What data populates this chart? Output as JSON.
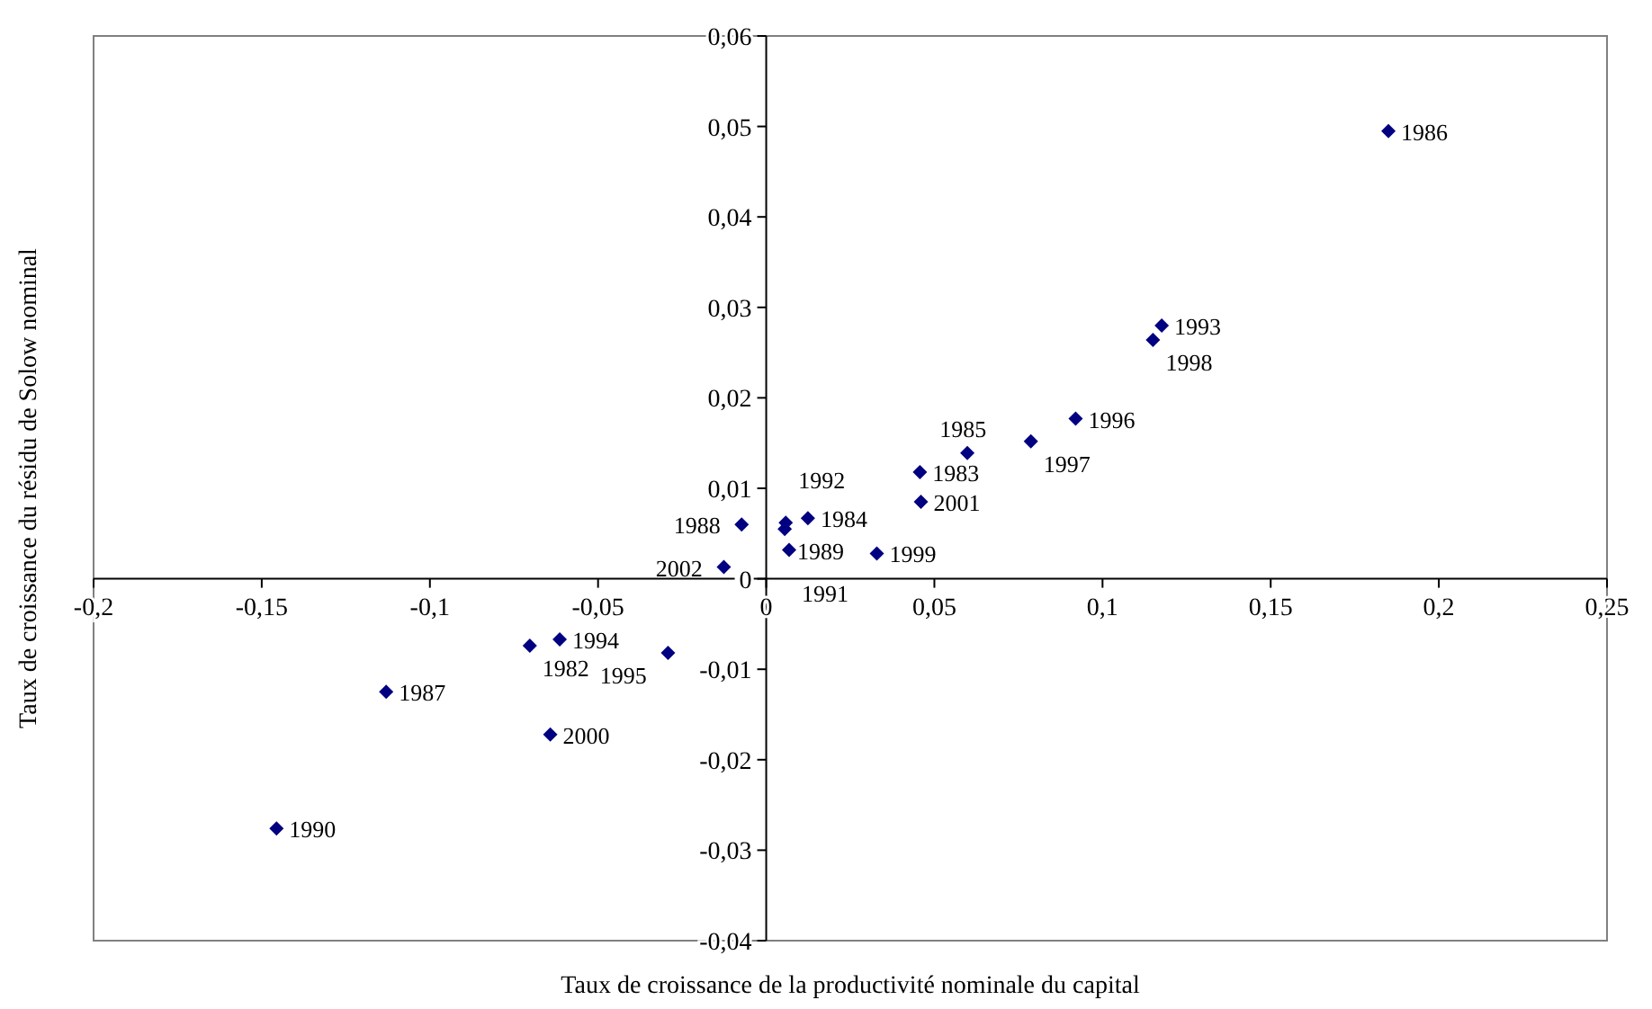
{
  "chart_data": {
    "type": "scatter",
    "xlabel": "Taux de croissance de la productivité nominale du capital",
    "ylabel": "Taux de croissance du résidu de Solow nominal",
    "x": [
      -0.0703,
      0.0457,
      0.0124,
      0.0598,
      0.185,
      -0.113,
      -0.0073,
      0.0055,
      -0.1456,
      0.0068,
      0.0058,
      0.1176,
      -0.0614,
      -0.0292,
      0.092,
      0.0787,
      0.115,
      0.0329,
      -0.0642,
      0.046,
      -0.0126
    ],
    "series": [
      {
        "color": "#000080",
        "values": [
          -0.0074,
          0.0118,
          0.0067,
          0.0139,
          0.0495,
          -0.0125,
          0.006,
          0.0055,
          -0.0276,
          0.0032,
          0.0062,
          0.028,
          -0.0067,
          -0.0082,
          0.0177,
          0.0152,
          0.0264,
          0.0028,
          -0.0172,
          0.0085,
          0.0013
        ]
      }
    ],
    "annotations": [
      {
        "text": "1982",
        "x": -0.0703,
        "y": -0.0074
      },
      {
        "text": "1983",
        "x": 0.0457,
        "y": 0.0118
      },
      {
        "text": "1984",
        "x": 0.0124,
        "y": 0.0067
      },
      {
        "text": "1985",
        "x": 0.0598,
        "y": 0.0139
      },
      {
        "text": "1986",
        "x": 0.185,
        "y": 0.0495
      },
      {
        "text": "1987",
        "x": -0.113,
        "y": -0.0125
      },
      {
        "text": "1988",
        "x": -0.0073,
        "y": 0.006
      },
      {
        "text": "1989",
        "x": 0.0055,
        "y": 0.0055
      },
      {
        "text": "1990",
        "x": -0.1456,
        "y": -0.0276
      },
      {
        "text": "1991",
        "x": 0.0068,
        "y": 0.0032
      },
      {
        "text": "1992",
        "x": 0.0058,
        "y": 0.0062
      },
      {
        "text": "1993",
        "x": 0.1176,
        "y": 0.028
      },
      {
        "text": "1994",
        "x": -0.0614,
        "y": -0.0067
      },
      {
        "text": "1995",
        "x": -0.0292,
        "y": -0.0082
      },
      {
        "text": "1996",
        "x": 0.092,
        "y": 0.0177
      },
      {
        "text": "1997",
        "x": 0.0787,
        "y": 0.0152
      },
      {
        "text": "1998",
        "x": 0.115,
        "y": 0.0264
      },
      {
        "text": "1999",
        "x": 0.0329,
        "y": 0.0028
      },
      {
        "text": "2000",
        "x": -0.0642,
        "y": -0.0172
      },
      {
        "text": "2001",
        "x": 0.046,
        "y": 0.0085
      },
      {
        "text": "2002",
        "x": -0.0126,
        "y": 0.0013
      }
    ],
    "xlim": [
      -0.2,
      0.25
    ],
    "ylim": [
      -0.04,
      0.06
    ],
    "xticks": [
      {
        "value": -0.2,
        "label": "-0,2"
      },
      {
        "value": -0.15,
        "label": "-0,15"
      },
      {
        "value": -0.1,
        "label": "-0,1"
      },
      {
        "value": -0.05,
        "label": "-0,05"
      },
      0,
      {
        "value": 0.05,
        "label": "0,05"
      },
      {
        "value": 0.1,
        "label": "0,1"
      },
      {
        "value": 0.15,
        "label": "0,15"
      },
      {
        "value": 0.2,
        "label": "0,2"
      },
      {
        "value": 0.25,
        "label": "0,25"
      }
    ],
    "yticks": [
      {
        "value": -0.04,
        "label": "-0,04"
      },
      {
        "value": -0.03,
        "label": "-0,03"
      },
      {
        "value": -0.02,
        "label": "-0,02"
      },
      {
        "value": -0.01,
        "label": "-0,01"
      },
      0,
      {
        "value": 0.01,
        "label": "0,01"
      },
      {
        "value": 0.02,
        "label": "0,02"
      },
      {
        "value": 0.03,
        "label": "0,03"
      },
      {
        "value": 0.04,
        "label": "0,04"
      },
      {
        "value": 0.05,
        "label": "0,05"
      },
      {
        "value": 0.06,
        "label": "0,06"
      }
    ],
    "marker": "diamond",
    "legend": false,
    "grid": false
  }
}
